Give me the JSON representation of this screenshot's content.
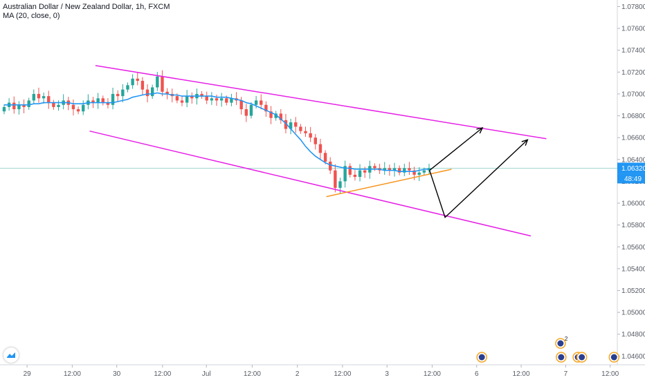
{
  "chart_data": {
    "type": "candlestick",
    "title": "Australian Dollar / New Zealand Dollar, 1h, FXCM",
    "indicator_label": "MA (20, close, 0)",
    "current_price": "1.06320",
    "countdown": "48:49",
    "y_ticks": [
      "1.07800",
      "1.07600",
      "1.07400",
      "1.07200",
      "1.07000",
      "1.06800",
      "1.06600",
      "1.06400",
      "1.06200",
      "1.06000",
      "1.05800",
      "1.05600",
      "1.05400",
      "1.05200",
      "1.05000",
      "1.04800",
      "1.04600"
    ],
    "x_ticks": [
      "29",
      "12:00",
      "30",
      "12:00",
      "Jul",
      "12:00",
      "2",
      "12:00",
      "3",
      "12:00",
      "6",
      "12:00",
      "7",
      "12:00"
    ],
    "ylim": [
      1.0452,
      1.0786
    ],
    "grid": false,
    "series": [
      {
        "values": [
          1.0688,
          1.0692,
          1.0686,
          1.069,
          1.0688,
          1.0694,
          1.07,
          1.0696,
          1.0698,
          1.0692,
          1.0688,
          1.069,
          1.0694,
          1.069,
          1.0686,
          1.0684,
          1.069,
          1.0694,
          1.0692,
          1.0696,
          1.0692,
          1.069,
          1.07,
          1.0698,
          1.0704,
          1.0708,
          1.0714,
          1.0712,
          1.0704,
          1.0698,
          1.0706,
          1.0716,
          1.0702,
          1.07,
          1.0698,
          1.0694,
          1.0692,
          1.0698,
          1.0696,
          1.07,
          1.0698,
          1.0694,
          1.0696,
          1.0694,
          1.0696,
          1.0692,
          1.0696,
          1.0694,
          1.0686,
          1.068,
          1.069,
          1.0694,
          1.069,
          1.0684,
          1.0678,
          1.0682,
          1.0676,
          1.0668,
          1.0674,
          1.067,
          1.0666,
          1.0664,
          1.066,
          1.0654,
          1.0646,
          1.0638,
          1.063,
          1.0614,
          1.062,
          1.0634,
          1.0626,
          1.0624,
          1.063,
          1.0628,
          1.0634,
          1.0632,
          1.063,
          1.0632,
          1.063,
          1.0632,
          1.0628,
          1.0632,
          1.063,
          1.0626,
          1.0628,
          1.063,
          1.0632
        ]
      },
      {
        "name": "MA (20, close, 0)",
        "values": [
          1.069,
          1.069,
          1.069,
          1.069,
          1.069,
          1.069,
          1.0691,
          1.0691,
          1.0692,
          1.0692,
          1.0692,
          1.0692,
          1.0692,
          1.0692,
          1.0691,
          1.0691,
          1.0691,
          1.0692,
          1.0692,
          1.0692,
          1.0692,
          1.0692,
          1.0692,
          1.0693,
          1.0694,
          1.0695,
          1.0697,
          1.0698,
          1.0699,
          1.07,
          1.07,
          1.0701,
          1.07,
          1.07,
          1.0699,
          1.0699,
          1.0698,
          1.0698,
          1.0698,
          1.0698,
          1.0698,
          1.0698,
          1.0698,
          1.0697,
          1.0697,
          1.0697,
          1.0696,
          1.0695,
          1.0694,
          1.0692,
          1.0691,
          1.0689,
          1.0687,
          1.0685,
          1.0683,
          1.0681,
          1.0677,
          1.0673,
          1.0668,
          1.0663,
          1.0658,
          1.0652,
          1.0647,
          1.0643,
          1.064,
          1.0637,
          1.0635,
          1.0634,
          1.0633,
          1.0632,
          1.0632,
          1.0631,
          1.0631,
          1.0631,
          1.0631,
          1.0631,
          1.0631,
          1.063,
          1.063,
          1.063,
          1.0629,
          1.0629,
          1.0629,
          1.0629,
          1.063,
          1.0631,
          1.0631
        ]
      }
    ],
    "annotations": {
      "upper_channel": [
        {
          "t": 0.148,
          "p": 1.0726
        },
        {
          "t": 0.847,
          "p": 1.0659
        }
      ],
      "lower_channel": [
        {
          "t": 0.139,
          "p": 1.0666
        },
        {
          "t": 0.823,
          "p": 1.057
        }
      ],
      "support_line": [
        {
          "t": 0.506,
          "p": 1.0606
        },
        {
          "t": 0.7,
          "p": 1.0631
        }
      ],
      "projection_1": [
        {
          "t": 0.666,
          "p": 1.063
        },
        {
          "t": 0.748,
          "p": 1.0669
        }
      ],
      "projection_2": [
        {
          "t": 0.666,
          "p": 1.063
        },
        {
          "t": 0.69,
          "p": 1.0587
        },
        {
          "t": 0.818,
          "p": 1.0658
        }
      ]
    },
    "colors": {
      "up": "#26a69a",
      "down": "#ef5350",
      "ma": "#2196f3",
      "channel": "#e621e6",
      "support": "#f7941d",
      "projection": "#000000",
      "price_label": "#2196f3",
      "price_line": "#a0d6cf"
    },
    "event_markers": [
      {
        "label": "",
        "icon": "calendar-flag-icon",
        "t": 0.747
      },
      {
        "label": "2",
        "icon": "calendar-flag-icon",
        "t": 0.869
      },
      {
        "label": "",
        "icon": "calendar-flag-icon",
        "t": 0.87
      },
      {
        "label": "",
        "icon": "calendar-flag-icon",
        "t": 0.896
      },
      {
        "label": "",
        "icon": "calendar-flag-icon",
        "t": 0.902
      },
      {
        "label": "",
        "icon": "calendar-flag-icon",
        "t": 0.952
      }
    ]
  }
}
